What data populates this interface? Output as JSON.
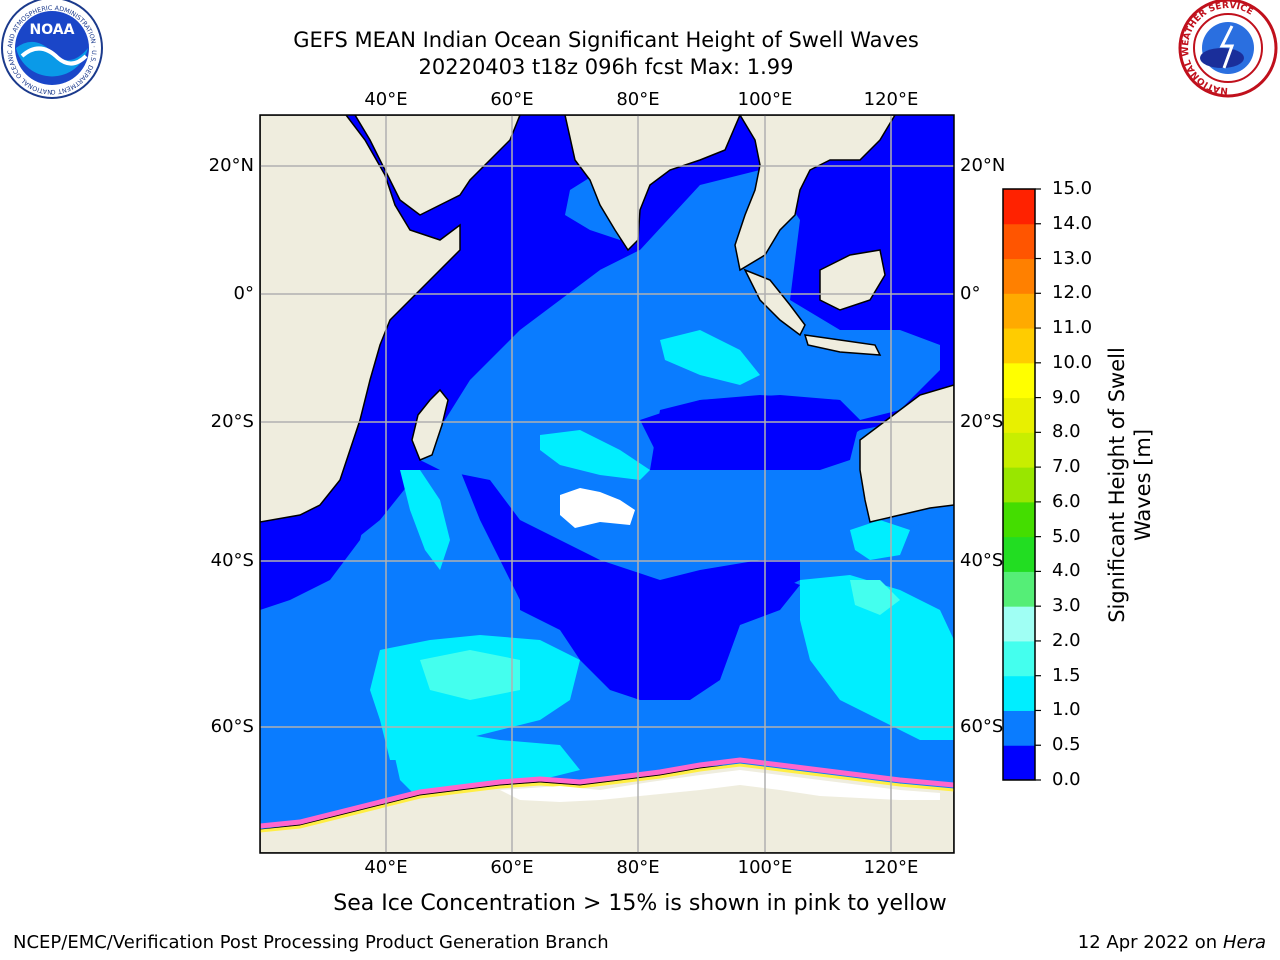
{
  "title": {
    "line1": "GEFS MEAN Indian Ocean Significant Height of Swell Waves",
    "line2": "20220403 t18z 096h fcst   Max: 1.99"
  },
  "lon_ticks": [
    "40°E",
    "60°E",
    "80°E",
    "100°E",
    "120°E"
  ],
  "lat_ticks": [
    "20°N",
    "0°",
    "20°S",
    "40°S",
    "60°S"
  ],
  "colorbar": {
    "label_line1": "Significant Height of Swell",
    "label_line2": "Waves [m]",
    "ticks": [
      "0.0",
      "0.5",
      "1.0",
      "1.5",
      "2.0",
      "3.0",
      "4.0",
      "5.0",
      "6.0",
      "7.0",
      "8.0",
      "9.0",
      "10.0",
      "11.0",
      "12.0",
      "13.0",
      "14.0",
      "15.0"
    ],
    "colors": [
      "#0000ff",
      "#0a7cff",
      "#00eeff",
      "#44ffee",
      "#a0fff4",
      "#55ee77",
      "#22dd22",
      "#44dd00",
      "#99e600",
      "#c8ee00",
      "#e8f000",
      "#ffff00",
      "#ffcc00",
      "#ffaa00",
      "#ff8000",
      "#ff5500",
      "#ff2200",
      "#ff0000"
    ]
  },
  "caption": "Sea Ice Concentration > 15% is shown in pink to yellow",
  "footer": {
    "left": "NCEP/EMC/Verification Post Processing Product Generation Branch",
    "right_date": "12 Apr 2022 on ",
    "right_host": "Hera"
  },
  "logos": {
    "noaa": "NOAA",
    "noaa_ring": "NATIONAL OCEANIC AND ATMOSPHERIC ADMINISTRATION · U.S. DEPARTMENT OF COMMERCE",
    "nws_ring": "NATIONAL WEATHER SERVICE"
  },
  "colors": {
    "land": "#efedde",
    "deep_blue": "#0000ff",
    "mid_blue": "#0a7cff",
    "cyan": "#00eeff",
    "light_cyan": "#44ffee",
    "grid": "#b0b0b0"
  }
}
